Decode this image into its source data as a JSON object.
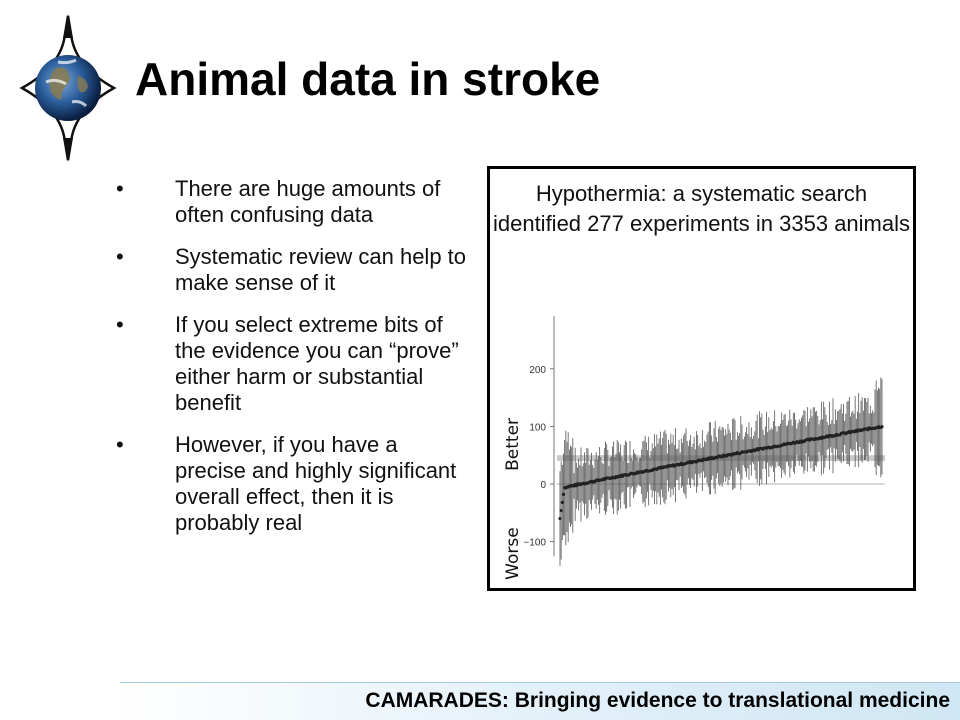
{
  "slide": {
    "title": "Animal data in stroke",
    "bullets": [
      "There are huge amounts of often confusing data",
      "Systematic review can help to make sense of it",
      "If you select extreme bits of the evidence you can “prove” either harm or substantial benefit",
      "However, if you have a precise and highly significant overall effect, then it is probably real"
    ],
    "bullet_symbol": "•",
    "logo_icon": "globe-diamond-logo"
  },
  "panel": {
    "caption": "Hypothermia: a systematic search identified 277 experiments in 3353 animals"
  },
  "chart_data": {
    "type": "scatter",
    "description_of_series": "experiments ranked by effect size with confidence intervals",
    "yticks": [
      "200",
      "100",
      "0",
      "−100"
    ],
    "ylim": [
      -150,
      250
    ],
    "side_labels": {
      "top": "Better",
      "bottom": "Worse"
    },
    "pooled_estimate": 45,
    "pooled_ci": [
      40,
      50
    ],
    "reference_line": 0,
    "n_points": 277,
    "range": {
      "min": -60,
      "max": 100
    },
    "series_color": "#222222",
    "reference_color": "#cccccc",
    "pooled_color": "#bbbbbb"
  },
  "footer": {
    "text": "CAMARADES:  Bringing evidence to translational medicine"
  }
}
